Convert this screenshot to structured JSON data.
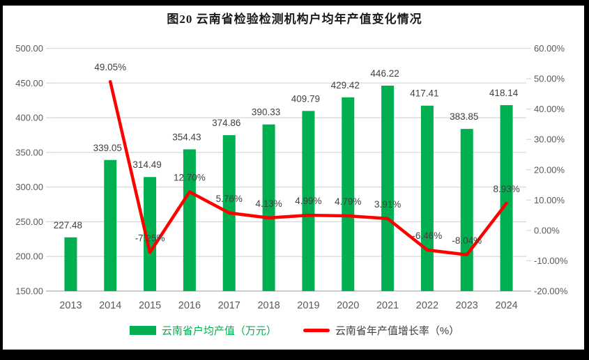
{
  "title": "图20  云南省检验检测机构户均年产值变化情况",
  "legend": {
    "items": [
      {
        "label": "云南省户均产值（万元）",
        "swatch": "bar",
        "color": "#00B050",
        "text_color": "#00B050"
      },
      {
        "label": "云南省年产值增长率（%）",
        "swatch": "line",
        "color": "#FF0000",
        "text_color": "#404040"
      }
    ]
  },
  "chart_data": {
    "type": "combo",
    "title": "图20  云南省检验检测机构户均年产值变化情况",
    "categories": [
      "2013",
      "2014",
      "2015",
      "2016",
      "2017",
      "2018",
      "2019",
      "2020",
      "2021",
      "2022",
      "2023",
      "2024"
    ],
    "series": [
      {
        "name": "云南省户均产值（万元）",
        "type": "bar",
        "axis": "left",
        "color": "#00B050",
        "values": [
          227.48,
          339.05,
          314.49,
          354.43,
          374.86,
          390.33,
          409.79,
          429.42,
          446.22,
          417.41,
          383.85,
          418.14
        ],
        "labels": [
          "227.48",
          "339.05",
          "314.49",
          "354.43",
          "374.86",
          "390.33",
          "409.79",
          "429.42",
          "446.22",
          "417.41",
          "383.85",
          "418.14"
        ]
      },
      {
        "name": "云南省年产值增长率（%）",
        "type": "line",
        "axis": "right",
        "color": "#FF0000",
        "values": [
          null,
          49.05,
          -7.25,
          12.7,
          5.76,
          4.13,
          4.99,
          4.79,
          3.91,
          -6.46,
          -8.04,
          8.93
        ],
        "labels": [
          "",
          "49.05%",
          "-7.25%",
          "12.70%",
          "5.76%",
          "4.13%",
          "4.99%",
          "4.79%",
          "3.91%",
          "-6.46%",
          "-8.04%",
          "8.93%"
        ]
      }
    ],
    "left_axis": {
      "min": 150,
      "max": 500,
      "step": 50,
      "tick_labels": [
        "500.00",
        "450.00",
        "400.00",
        "350.00",
        "300.00",
        "250.00",
        "200.00",
        "150.00"
      ]
    },
    "right_axis": {
      "min": -20,
      "max": 60,
      "step": 10,
      "tick_labels": [
        "60.00%",
        "50.00%",
        "40.00%",
        "30.00%",
        "20.00%",
        "10.00%",
        "0.00%",
        "-10.00%",
        "-20.00%"
      ]
    },
    "grid": true,
    "legend_position": "bottom",
    "colors": {
      "grid": "#D9D9D9",
      "axis_line": "#BFBFBF",
      "tick_label": "#595959",
      "category_label": "#595959",
      "data_label": "#404040"
    }
  }
}
